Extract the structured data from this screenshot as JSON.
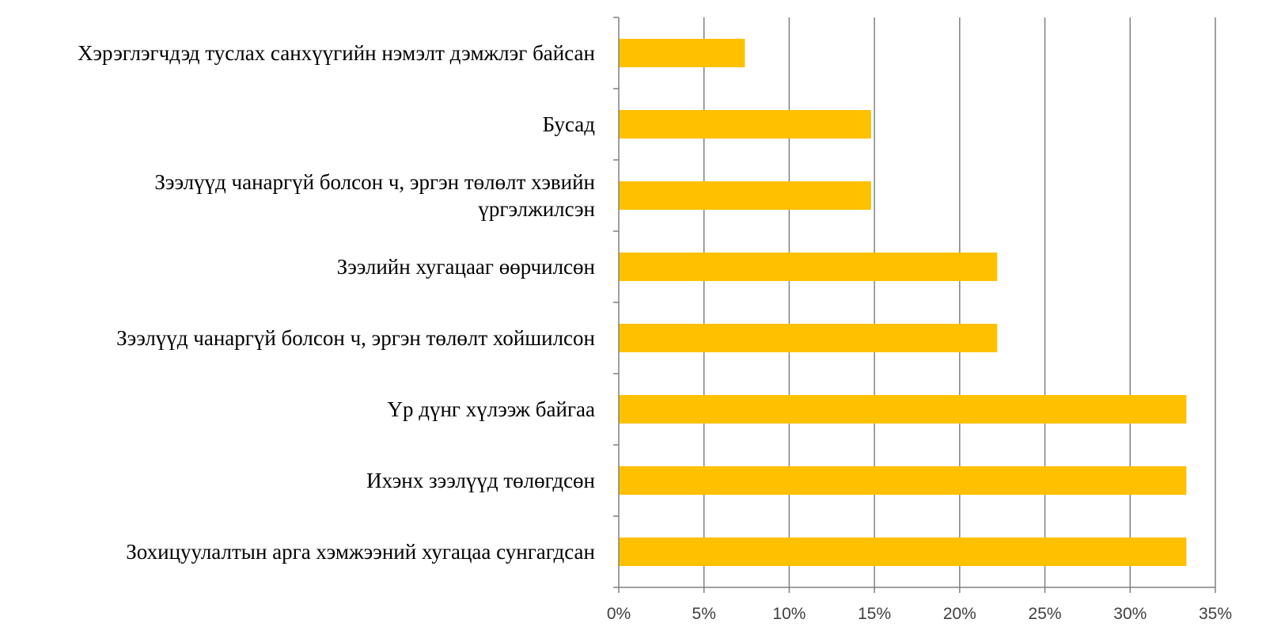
{
  "chart_data": {
    "type": "bar",
    "orientation": "horizontal",
    "categories": [
      [
        "Хэрэглэгчдэд туслах санхүүгийн нэмэлт дэмжлэг байсан"
      ],
      [
        "Бусад"
      ],
      [
        "Зээлүүд чанаргүй болсон ч, эргэн төлөлт хэвийн",
        "үргэлжилсэн"
      ],
      [
        "Зээлийн хугацааг өөрчилсөн"
      ],
      [
        "Зээлүүд чанаргүй болсон ч, эргэн төлөлт хойшилсон"
      ],
      [
        "Үр дүнг хүлээж байгаа"
      ],
      [
        "Ихэнх зээлүүд төлөгдсөн"
      ],
      [
        "Зохицуулалтын арга хэмжээний хугацаа сунгагдсан"
      ]
    ],
    "values": [
      7.4,
      14.8,
      14.8,
      22.2,
      22.2,
      33.3,
      33.3,
      33.3
    ],
    "xlim": [
      0,
      35
    ],
    "xticks": [
      "0%",
      "5%",
      "10%",
      "15%",
      "20%",
      "25%",
      "30%",
      "35%"
    ],
    "xtick_values": [
      0,
      5,
      10,
      15,
      20,
      25,
      30,
      35
    ],
    "grid": "vertical",
    "legend": "none",
    "title": "",
    "xlabel": "",
    "ylabel": "",
    "colors": {
      "bar": "#FFC000",
      "grid": "#808080",
      "axis": "#808080"
    }
  }
}
